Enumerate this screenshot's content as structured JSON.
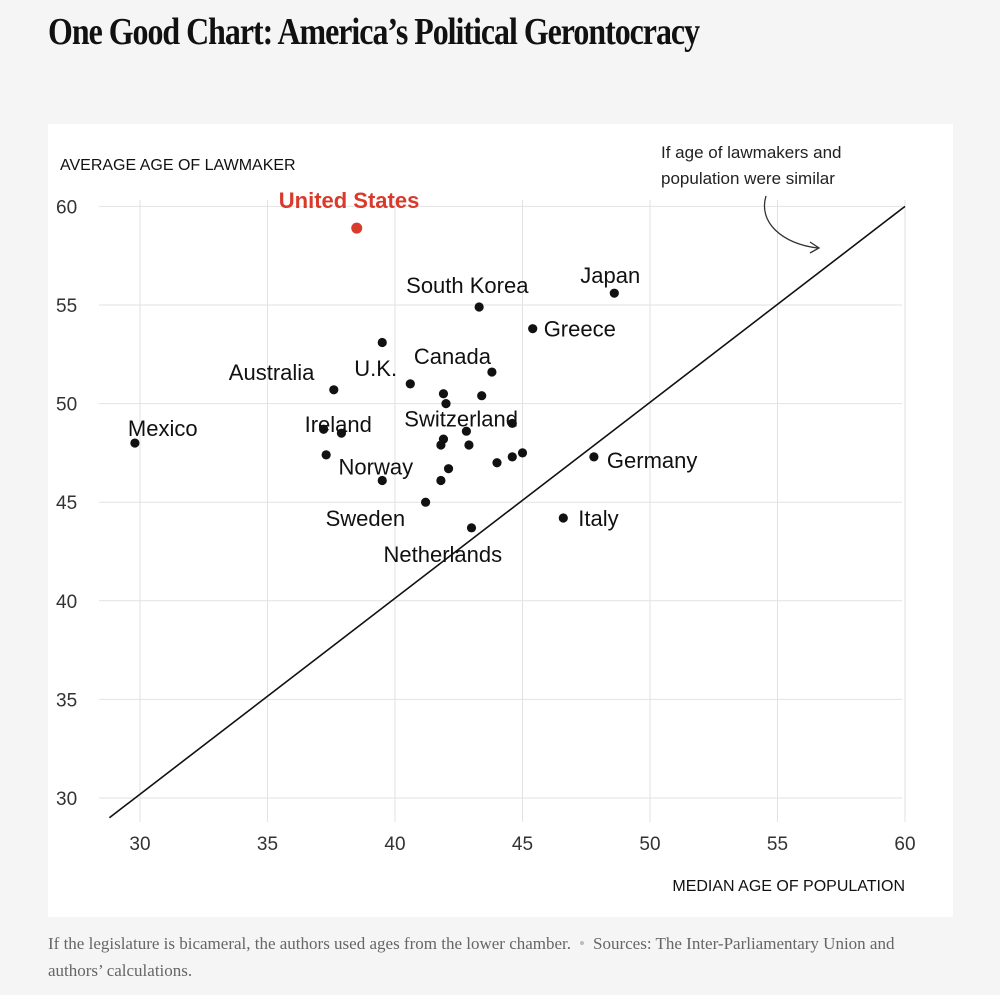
{
  "header": {
    "title": "One Good Chart: America’s Political Gerontocracy"
  },
  "footer": {
    "note": "If the legislature is bicameral, the authors used ages from the lower chamber.",
    "separator": "•",
    "sources": "Sources: The Inter-Parliamentary Union and authors’ calculations."
  },
  "chart_data": {
    "type": "scatter",
    "xlabel": "MEDIAN AGE OF POPULATION",
    "ylabel": "AVERAGE AGE OF LAWMAKER",
    "xlim": [
      28.8,
      60
    ],
    "ylim": [
      29,
      60
    ],
    "x_ticks": [
      30,
      35,
      40,
      45,
      50,
      55,
      60
    ],
    "y_ticks": [
      30,
      35,
      40,
      45,
      50,
      55,
      60
    ],
    "grid": true,
    "highlight_color": "#d93a2b",
    "reference_line": {
      "from": [
        28.8,
        29
      ],
      "to": [
        60,
        60
      ],
      "annotation": [
        "If age of lawmakers and",
        "population were similar"
      ]
    },
    "points": [
      {
        "label": "United States",
        "x": 38.5,
        "y": 58.9,
        "highlight": true
      },
      {
        "label": "Japan",
        "x": 48.6,
        "y": 55.6
      },
      {
        "label": "South Korea",
        "x": 43.3,
        "y": 54.9
      },
      {
        "label": "Greece",
        "x": 45.4,
        "y": 53.8
      },
      {
        "label": "",
        "x": 39.5,
        "y": 53.1
      },
      {
        "label": "Canada",
        "x": 43.8,
        "y": 51.6
      },
      {
        "label": "U.K.",
        "x": 40.6,
        "y": 51.0
      },
      {
        "label": "Australia",
        "x": 37.6,
        "y": 50.7
      },
      {
        "label": "",
        "x": 41.9,
        "y": 50.5
      },
      {
        "label": "",
        "x": 43.4,
        "y": 50.4
      },
      {
        "label": "",
        "x": 42.0,
        "y": 50.0
      },
      {
        "label": "Switzerland",
        "x": 44.6,
        "y": 49.0
      },
      {
        "label": "Ireland",
        "x": 37.2,
        "y": 48.7
      },
      {
        "label": "",
        "x": 42.8,
        "y": 48.6
      },
      {
        "label": "",
        "x": 37.9,
        "y": 48.5
      },
      {
        "label": "",
        "x": 41.9,
        "y": 48.2
      },
      {
        "label": "",
        "x": 41.8,
        "y": 47.9
      },
      {
        "label": "",
        "x": 42.9,
        "y": 47.9
      },
      {
        "label": "Mexico",
        "x": 29.8,
        "y": 48.0
      },
      {
        "label": "",
        "x": 37.3,
        "y": 47.4
      },
      {
        "label": "",
        "x": 45.0,
        "y": 47.5
      },
      {
        "label": "",
        "x": 44.6,
        "y": 47.3
      },
      {
        "label": "Germany",
        "x": 47.8,
        "y": 47.3
      },
      {
        "label": "",
        "x": 44.0,
        "y": 47.0
      },
      {
        "label": "Norway",
        "x": 42.1,
        "y": 46.7
      },
      {
        "label": "",
        "x": 41.8,
        "y": 46.1
      },
      {
        "label": "",
        "x": 39.5,
        "y": 46.1
      },
      {
        "label": "Sweden",
        "x": 41.2,
        "y": 45.0
      },
      {
        "label": "Italy",
        "x": 46.6,
        "y": 44.2
      },
      {
        "label": "Netherlands",
        "x": 43.0,
        "y": 43.7
      }
    ]
  }
}
